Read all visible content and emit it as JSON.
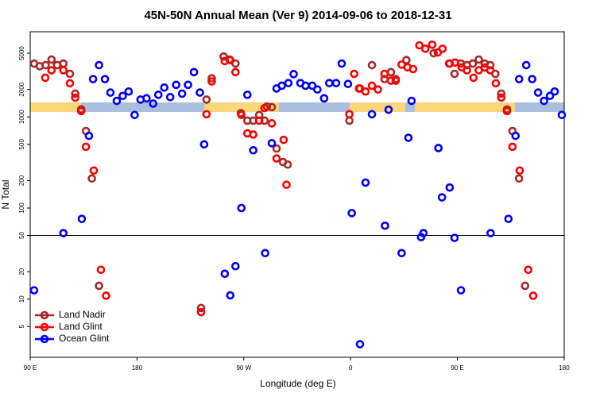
{
  "chart_data": {
    "type": "scatter",
    "title": "45N-50N Annual Mean (Ver 9)   2014-09-06 to 2018-12-31",
    "x_label": "Longitude (deg E)",
    "y_label": "N Total",
    "xlim": [
      90,
      540
    ],
    "xticks": [
      {
        "value": 90,
        "label": "90 E"
      },
      {
        "value": 180,
        "label": "180"
      },
      {
        "value": 270,
        "label": "90 W"
      },
      {
        "value": 360,
        "label": "0"
      },
      {
        "value": 450,
        "label": "90 E"
      },
      {
        "value": 540,
        "label": "180"
      }
    ],
    "ylim": [
      2.3,
      8600
    ],
    "yticks": [
      5,
      10,
      20,
      50,
      100,
      200,
      500,
      1000,
      2000,
      5000
    ],
    "ylog": true,
    "hline": 50,
    "legend": "lower left",
    "series": [
      {
        "name": "Land Nadir",
        "color": "#a52a2a",
        "x": [
          93.3,
          98,
          103,
          108,
          112.7,
          118,
          123.5,
          128,
          133,
          137,
          142,
          148,
          234,
          238.6,
          243,
          253,
          258,
          263,
          267.5,
          273,
          278,
          283,
          287.5,
          289.5,
          293.6,
          297.6,
          303,
          307,
          359,
          367,
          378,
          388.6,
          394,
          398,
          407,
          430,
          443,
          447.6,
          453,
          458,
          463,
          468,
          473,
          477.7,
          482,
          487,
          491.8,
          496.4,
          502,
          507
        ],
        "values": [
          3850,
          3600,
          3700,
          4260,
          3700,
          3850,
          2970,
          1800,
          1210,
          700,
          211,
          14,
          8,
          1550,
          2650,
          4600,
          4260,
          3850,
          1100,
          910,
          910,
          1050,
          910,
          1300,
          1280,
          450,
          320,
          300,
          910,
          2050,
          3700,
          2600,
          3100,
          2600,
          4200,
          5000,
          3850,
          2970,
          3850,
          3700,
          3850,
          4260,
          3850,
          3700,
          2970,
          1800,
          1210,
          700,
          211,
          14
        ]
      },
      {
        "name": "Land Glint",
        "color": "#ff0000",
        "x": [
          102.7,
          108,
          118,
          123.5,
          128,
          133,
          137,
          143.6,
          149.6,
          154,
          234,
          238.6,
          243,
          254,
          258.6,
          263,
          268,
          273,
          278,
          283,
          287.5,
          293.6,
          297.6,
          303.6,
          306,
          359,
          363,
          367.9,
          372.6,
          378,
          383,
          388.6,
          394,
          398,
          403,
          408,
          412.7,
          418,
          423,
          428.8,
          433.5,
          437.5,
          443.5,
          448,
          453.6,
          458,
          463.6,
          468,
          473,
          477.7,
          482.4,
          487,
          491.8,
          496.4,
          502.5,
          509.7,
          513.9
        ],
        "values": [
          2690,
          3250,
          3250,
          2340,
          1630,
          1160,
          470,
          258,
          21,
          10.9,
          7.2,
          1070,
          2450,
          4100,
          4200,
          3100,
          1050,
          660,
          640,
          910,
          1250,
          850,
          350,
          560,
          180,
          1070,
          2970,
          2050,
          1900,
          2200,
          2000,
          2970,
          2500,
          2500,
          3750,
          3500,
          3350,
          6100,
          5600,
          6200,
          5100,
          5600,
          3850,
          3950,
          3500,
          3250,
          2690,
          3250,
          3490,
          3250,
          2340,
          1630,
          1160,
          470,
          258,
          21,
          10.9
        ]
      },
      {
        "name": "Ocean Glint",
        "color": "#0000ff",
        "x": [
          93.3,
          118,
          133.5,
          139.5,
          143,
          148,
          153,
          157.6,
          163,
          168,
          173,
          178,
          183,
          188,
          193.6,
          198,
          203,
          208,
          213,
          218,
          223,
          228,
          233,
          236.6,
          254,
          258.6,
          263,
          268,
          273,
          278,
          288,
          293.6,
          297.6,
          302,
          307.6,
          312,
          317.7,
          322,
          327.7,
          332,
          337.7,
          342,
          347.8,
          352.5,
          357.8,
          361,
          367.9,
          372.6,
          378,
          389,
          392,
          403,
          408.7,
          411.4,
          419.4,
          421.4,
          434,
          437,
          443.5,
          447.6,
          453,
          478,
          493,
          499,
          502,
          508,
          513,
          518,
          523,
          528,
          532,
          538
        ],
        "values": [
          12.5,
          53,
          76,
          620,
          2600,
          3700,
          2600,
          1850,
          1500,
          1700,
          1900,
          1050,
          1550,
          1600,
          1400,
          1750,
          2100,
          1650,
          2250,
          1800,
          2250,
          3100,
          1850,
          500,
          19,
          11,
          23,
          100,
          1750,
          430,
          32,
          515,
          2050,
          2200,
          2350,
          2950,
          2350,
          2200,
          2200,
          2000,
          1600,
          2350,
          2350,
          3850,
          2300,
          88,
          3.2,
          190,
          1070,
          64,
          1200,
          32,
          590,
          1500,
          48,
          53,
          455,
          131,
          168,
          47,
          12.5,
          53,
          76,
          620,
          2600,
          3700,
          2600,
          1850,
          1500,
          1700,
          1900,
          1050
        ]
      }
    ]
  }
}
